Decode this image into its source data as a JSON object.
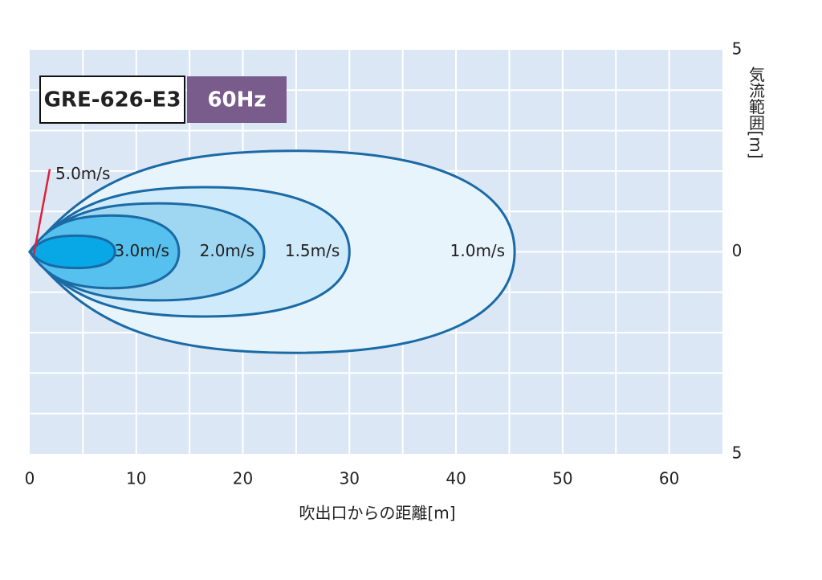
{
  "chart_data": {
    "type": "airflow-contour",
    "model": "GRE-626-E3",
    "frequency": "60Hz",
    "x_label": "吹出口からの距離[m]",
    "y_label": "気流範囲[m]",
    "xlim": [
      0,
      65
    ],
    "xticks": [
      0,
      10,
      20,
      30,
      40,
      50,
      60
    ],
    "ylim": [
      -5,
      5
    ],
    "yticks": [
      {
        "value": 5,
        "label": "5"
      },
      0,
      {
        "value": -5,
        "label": "5"
      }
    ],
    "xgrid": [
      5,
      10,
      15,
      20,
      25,
      30,
      35,
      40,
      45,
      50,
      55,
      60
    ],
    "ygrid": [
      -4,
      -3,
      -2,
      -1,
      0,
      1,
      2,
      3,
      4
    ],
    "grid": true,
    "series": [
      {
        "name": "1.0m/s",
        "reach": 45.5,
        "half_width": 2.5,
        "color": "#e8f4fc"
      },
      {
        "name": "1.5m/s",
        "reach": 30,
        "half_width": 1.6,
        "color": "#cfeafa"
      },
      {
        "name": "2.0m/s",
        "reach": 22,
        "half_width": 1.2,
        "color": "#9fd7f3"
      },
      {
        "name": "3.0m/s",
        "reach": 14,
        "half_width": 0.9,
        "color": "#56c0ee"
      },
      {
        "name": "5.0m/s",
        "reach": 8,
        "half_width": 0.4,
        "color": "#08a8e6"
      }
    ]
  }
}
